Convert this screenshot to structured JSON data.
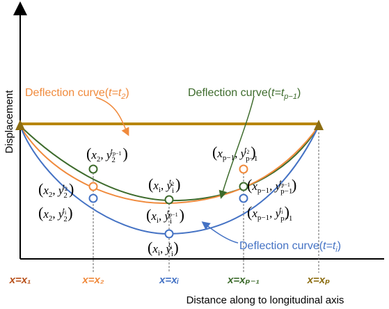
{
  "axes": {
    "y_label": "Displacement",
    "x_label": "Distance along to longitudinal axis"
  },
  "x_ticks": [
    {
      "text": "x=x₁",
      "color": "#B8501A"
    },
    {
      "text": "x=x₂",
      "color": "#F08A3C"
    },
    {
      "text": "x=xᵢ",
      "color": "#4472C4"
    },
    {
      "text": "x=xₚ₋₁",
      "color": "#3D6B2C"
    },
    {
      "text": "x=xₚ",
      "color": "#8C6D11"
    }
  ],
  "curves": {
    "t2": {
      "label_prefix": "Deflection curve(",
      "t_text": "t=t",
      "sub": "2",
      "suffix": ")",
      "color": "#F08A3C"
    },
    "tp1": {
      "label_prefix": "Deflection  curve(",
      "t_text": "t=t",
      "sub": "p−1",
      "suffix": ")",
      "color": "#3D6B2C"
    },
    "ti": {
      "label_prefix": "Deflection curve(",
      "t_text": "t=t",
      "sub": "i",
      "suffix": ")",
      "color": "#4472C4"
    }
  },
  "points": {
    "x2_tp1": {
      "x": "x",
      "xs": "2",
      "y": "y",
      "ys": "2",
      "yt": "t",
      "yts": "p−1"
    },
    "x2_t2": {
      "x": "x",
      "xs": "2",
      "y": "y",
      "ys": "2",
      "yt": "t",
      "yts": "2"
    },
    "x2_ti": {
      "x": "x",
      "xs": "2",
      "y": "y",
      "ys": "2",
      "yt": "t",
      "yts": "i"
    },
    "xi_t2": {
      "x": "x",
      "xs": "i",
      "y": "y",
      "ys": "i",
      "yt": "t",
      "yts": "2"
    },
    "xi_tp1": {
      "x": "x",
      "xs": "i",
      "y": "y",
      "ys": "i",
      "yt": "t",
      "yts": "p−1"
    },
    "xi_ti": {
      "x": "x",
      "xs": "i",
      "y": "y",
      "ys": "i",
      "yt": "t",
      "yts": "i"
    },
    "xp1_t2": {
      "x": "x",
      "xs": "p−1",
      "y": "y",
      "ys": "p−1",
      "yt": "t",
      "yts": "2"
    },
    "xp1_tp1": {
      "x": "x",
      "xs": "p−1",
      "y": "y",
      "ys": "p−1",
      "yt": "t",
      "yts": "p−1"
    },
    "xp1_ti": {
      "x": "x",
      "xs": "p−1",
      "y": "y",
      "ys": "p−1",
      "yt": "t",
      "yts": "i"
    }
  },
  "colors": {
    "beam": "#B8860B",
    "support": "#8C6D11",
    "axis": "#000000"
  }
}
